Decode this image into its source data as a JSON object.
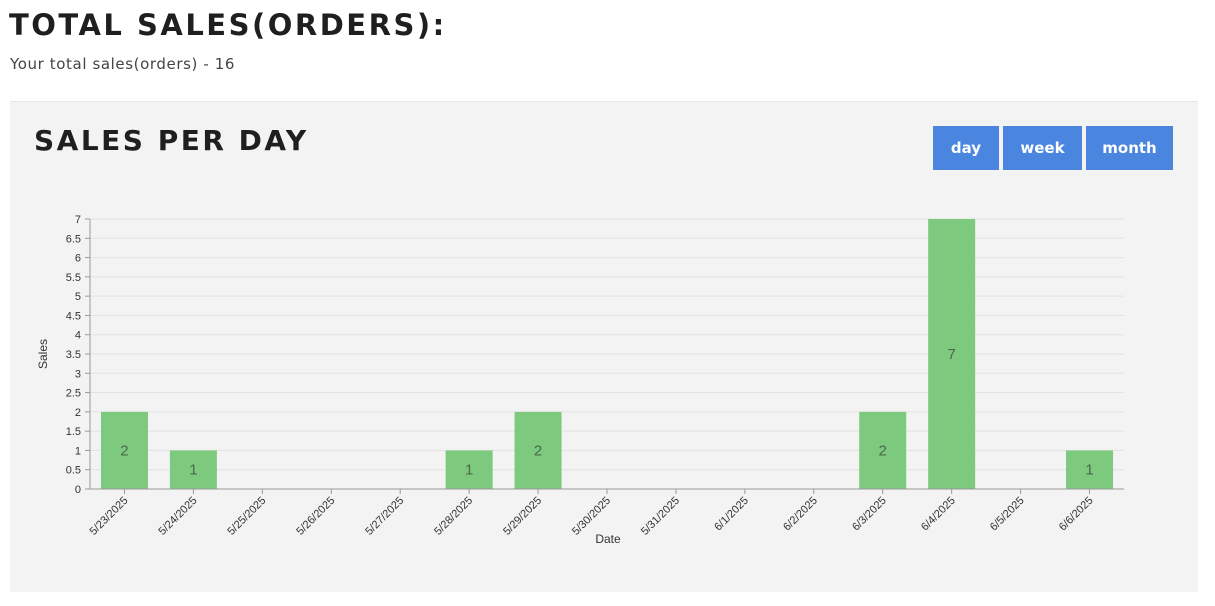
{
  "header": {
    "title": "TOTAL SALES(ORDERS):",
    "subtitle": "Your total sales(orders) - 16"
  },
  "panel": {
    "title": "SALES PER DAY",
    "buttons": [
      "day",
      "week",
      "month"
    ]
  },
  "colors": {
    "bar": "#7dc97d",
    "button": "#4a86e0",
    "panel_background": "#f3f3f3"
  },
  "chart_data": {
    "type": "bar",
    "title": "SALES PER DAY",
    "xlabel": "Date",
    "ylabel": "Sales",
    "categories": [
      "5/23/2025",
      "5/24/2025",
      "5/25/2025",
      "5/26/2025",
      "5/27/2025",
      "5/28/2025",
      "5/29/2025",
      "5/30/2025",
      "5/31/2025",
      "6/1/2025",
      "6/2/2025",
      "6/3/2025",
      "6/4/2025",
      "6/5/2025",
      "6/6/2025"
    ],
    "values": [
      2,
      1,
      0,
      0,
      0,
      1,
      2,
      0,
      0,
      0,
      0,
      2,
      7,
      0,
      1
    ],
    "ylim": [
      0,
      7
    ],
    "yticks": [
      "0",
      "0.5",
      "1",
      "1.5",
      "2",
      "2.5",
      "3",
      "3.5",
      "4",
      "4.5",
      "5",
      "5.5",
      "6",
      "6.5",
      "7"
    ],
    "grid": true,
    "legend": "none"
  }
}
